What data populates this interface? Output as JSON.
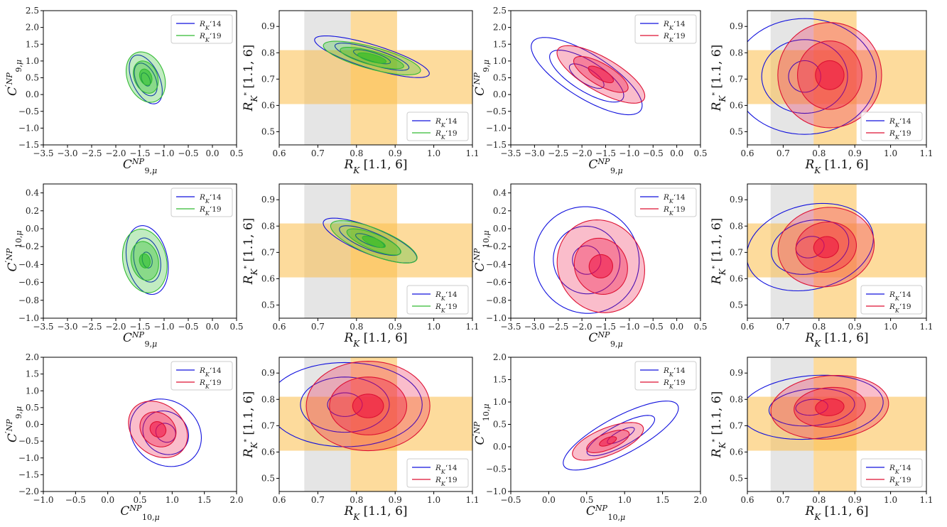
{
  "colors": {
    "blue": "#1010dd",
    "green_line": "#33bb33",
    "green_fill": "#22bb22",
    "red_line": "#dd1133",
    "red_fill": "#ee1144",
    "gray_band": "#d4d4d4",
    "orange_band": "#fbbd4a"
  },
  "legend_labels": {
    "r14": "R_K‘14",
    "r19": "R_K‘19"
  },
  "chart_data": [
    {
      "panel": "row1-col1",
      "type": "contour",
      "xlabel": "C9,μ NP",
      "ylabel": "C'9,μ NP",
      "xlim": [
        -3.5,
        0.5
      ],
      "ylim": [
        -1.5,
        2.5
      ],
      "xticks": [
        -3.5,
        -3.0,
        -2.5,
        -2.0,
        -1.5,
        -1.0,
        -0.5,
        0.0,
        0.5
      ],
      "yticks": [
        -1.5,
        -1.0,
        -0.5,
        0.0,
        0.5,
        1.0,
        1.5,
        2.0,
        2.5
      ],
      "series_colors": [
        "blue",
        "green"
      ],
      "legend": "top-right",
      "contours": [
        {
          "series": "R_K‘14",
          "filled": false,
          "cx": -1.38,
          "cy": 0.45,
          "levels": [
            [
              0.28,
              0.78,
              25
            ],
            [
              0.2,
              0.52,
              25
            ],
            [
              0.08,
              0.21,
              25
            ]
          ]
        },
        {
          "series": "R_K‘19",
          "filled": true,
          "cx": -1.38,
          "cy": 0.52,
          "levels": [
            [
              0.38,
              0.78,
              22
            ],
            [
              0.24,
              0.5,
              22
            ],
            [
              0.12,
              0.25,
              22
            ]
          ]
        }
      ]
    },
    {
      "panel": "row1-col2",
      "type": "contour",
      "xlabel": "R_K [1.1, 6]",
      "ylabel": "R_K* [1.1, 6]",
      "xlim": [
        0.6,
        1.1
      ],
      "ylim": [
        0.45,
        0.96
      ],
      "xticks": [
        0.6,
        0.7,
        0.8,
        0.9,
        1.0,
        1.1
      ],
      "yticks": [
        0.5,
        0.6,
        0.7,
        0.8,
        0.9
      ],
      "bands": {
        "x_gray": [
          0.665,
          0.785
        ],
        "x_orange": [
          0.785,
          0.905
        ],
        "x_overlap": [
          0.785,
          0.845
        ],
        "y_orange": [
          0.605,
          0.81
        ]
      },
      "series_colors": [
        "blue",
        "green"
      ],
      "legend": "bottom-right",
      "contours": [
        {
          "series": "R_K‘14",
          "filled": false,
          "cx": 0.84,
          "cy": 0.785,
          "levels": [
            [
              0.155,
              0.045,
              -17
            ],
            [
              0.1,
              0.03,
              -17
            ],
            [
              0.05,
              0.017,
              -17
            ]
          ]
        },
        {
          "series": "R_K‘19",
          "filled": true,
          "cx": 0.84,
          "cy": 0.78,
          "levels": [
            [
              0.13,
              0.042,
              -15
            ],
            [
              0.085,
              0.026,
              -15
            ],
            [
              0.038,
              0.014,
              -15
            ]
          ]
        }
      ]
    },
    {
      "panel": "row1-col3",
      "type": "contour",
      "xlabel": "C9,μ NP",
      "ylabel": "C'9,μ NP",
      "xlim": [
        -3.5,
        0.5
      ],
      "ylim": [
        -1.5,
        2.5
      ],
      "xticks": [
        -3.5,
        -3.0,
        -2.5,
        -2.0,
        -1.5,
        -1.0,
        -0.5,
        0.0,
        0.5
      ],
      "yticks": [
        -1.5,
        -1.0,
        -0.5,
        0.0,
        0.5,
        1.0,
        1.5,
        2.0,
        2.5
      ],
      "series_colors": [
        "blue",
        "red"
      ],
      "legend": "top-right",
      "contours": [
        {
          "series": "R_K‘14",
          "filled": false,
          "cx": -1.9,
          "cy": 0.55,
          "levels": [
            [
              1.35,
              0.65,
              -32
            ],
            [
              0.9,
              0.45,
              -32
            ],
            [
              0.42,
              0.22,
              -32
            ]
          ]
        },
        {
          "series": "R_K‘19",
          "filled": true,
          "cx": -1.6,
          "cy": 0.6,
          "levels": [
            [
              1.05,
              0.5,
              -30
            ],
            [
              0.65,
              0.32,
              -30
            ],
            [
              0.3,
              0.15,
              -30
            ]
          ]
        }
      ]
    },
    {
      "panel": "row1-col4",
      "type": "contour",
      "xlabel": "R_K [1.1, 6]",
      "ylabel": "R_K* [1.1, 6]",
      "xlim": [
        0.6,
        1.1
      ],
      "ylim": [
        0.45,
        0.96
      ],
      "xticks": [
        0.6,
        0.7,
        0.8,
        0.9,
        1.0,
        1.1
      ],
      "yticks": [
        0.5,
        0.6,
        0.7,
        0.8,
        0.9
      ],
      "bands": {
        "x_gray": [
          0.665,
          0.785
        ],
        "x_orange": [
          0.785,
          0.905
        ],
        "x_overlap": [
          0.785,
          0.845
        ],
        "y_orange": [
          0.605,
          0.81
        ]
      },
      "series_colors": [
        "blue",
        "red"
      ],
      "legend": "bottom-right",
      "contours": [
        {
          "series": "R_K‘14",
          "filled": false,
          "cx": 0.76,
          "cy": 0.71,
          "levels": [
            [
              0.2,
              0.22,
              0
            ],
            [
              0.12,
              0.14,
              0
            ],
            [
              0.045,
              0.06,
              0
            ]
          ]
        },
        {
          "series": "R_K‘19",
          "filled": true,
          "cx": 0.83,
          "cy": 0.715,
          "levels": [
            [
              0.145,
              0.2,
              0
            ],
            [
              0.09,
              0.13,
              0
            ],
            [
              0.04,
              0.055,
              0
            ]
          ]
        }
      ]
    },
    {
      "panel": "row2-col1",
      "type": "contour",
      "xlabel": "C9,μ NP",
      "ylabel": "C'10,μ NP",
      "xlim": [
        -3.5,
        0.5
      ],
      "ylim": [
        -1.0,
        0.5
      ],
      "xticks": [
        -3.5,
        -3.0,
        -2.5,
        -2.0,
        -1.5,
        -1.0,
        -0.5,
        0.0,
        0.5
      ],
      "yticks": [
        -1.0,
        -0.8,
        -0.6,
        -0.4,
        -0.2,
        0.0,
        0.2,
        0.4
      ],
      "series_colors": [
        "blue",
        "green"
      ],
      "legend": "top-right",
      "contours": [
        {
          "series": "R_K‘14",
          "filled": false,
          "cx": -1.35,
          "cy": -0.35,
          "levels": [
            [
              0.42,
              0.39,
              12
            ],
            [
              0.27,
              0.25,
              12
            ],
            [
              0.1,
              0.09,
              12
            ]
          ]
        },
        {
          "series": "R_K‘19",
          "filled": true,
          "cx": -1.4,
          "cy": -0.36,
          "levels": [
            [
              0.45,
              0.36,
              12
            ],
            [
              0.28,
              0.22,
              12
            ],
            [
              0.11,
              0.08,
              12
            ]
          ]
        }
      ]
    },
    {
      "panel": "row2-col2",
      "type": "contour",
      "xlabel": "R_K [1.1, 6]",
      "ylabel": "R_K* [1.1, 6]",
      "xlim": [
        0.6,
        1.1
      ],
      "ylim": [
        0.45,
        0.96
      ],
      "xticks": [
        0.6,
        0.7,
        0.8,
        0.9,
        1.0,
        1.1
      ],
      "yticks": [
        0.5,
        0.6,
        0.7,
        0.8,
        0.9
      ],
      "bands": {
        "x_gray": [
          0.665,
          0.785
        ],
        "x_orange": [
          0.785,
          0.905
        ],
        "x_overlap": [
          0.785,
          0.845
        ],
        "y_orange": [
          0.605,
          0.81
        ]
      },
      "series_colors": [
        "blue",
        "green"
      ],
      "legend": "bottom-right",
      "contours": [
        {
          "series": "R_K‘14",
          "filled": false,
          "cx": 0.835,
          "cy": 0.745,
          "levels": [
            [
              0.13,
              0.05,
              -22
            ],
            [
              0.085,
              0.034,
              -22
            ],
            [
              0.04,
              0.016,
              -22
            ]
          ]
        },
        {
          "series": "R_K‘19",
          "filled": true,
          "cx": 0.845,
          "cy": 0.74,
          "levels": [
            [
              0.12,
              0.05,
              -22
            ],
            [
              0.075,
              0.03,
              -22
            ],
            [
              0.032,
              0.014,
              -22
            ]
          ]
        }
      ]
    },
    {
      "panel": "row2-col3",
      "type": "contour",
      "xlabel": "C9,μ NP",
      "ylabel": "C'10,μ NP",
      "xlim": [
        -3.5,
        0.5
      ],
      "ylim": [
        -1.0,
        0.5
      ],
      "xticks": [
        -3.5,
        -3.0,
        -2.5,
        -2.0,
        -1.5,
        -1.0,
        -0.5,
        0.0,
        0.5
      ],
      "yticks": [
        -1.0,
        -0.8,
        -0.6,
        -0.4,
        -0.2,
        0.0,
        0.2,
        0.4
      ],
      "series_colors": [
        "blue",
        "red"
      ],
      "legend": "top-right",
      "contours": [
        {
          "series": "R_K‘14",
          "filled": false,
          "cx": -1.9,
          "cy": -0.35,
          "levels": [
            [
              1.1,
              0.6,
              28
            ],
            [
              0.7,
              0.38,
              28
            ],
            [
              0.3,
              0.16,
              28
            ]
          ]
        },
        {
          "series": "R_K‘19",
          "filled": true,
          "cx": -1.6,
          "cy": -0.42,
          "levels": [
            [
              0.9,
              0.53,
              28
            ],
            [
              0.55,
              0.32,
              28
            ],
            [
              0.25,
              0.13,
              28
            ]
          ]
        }
      ]
    },
    {
      "panel": "row2-col4",
      "type": "contour",
      "xlabel": "R_K [1.1, 6]",
      "ylabel": "R_K* [1.1, 6]",
      "xlim": [
        0.6,
        1.1
      ],
      "ylim": [
        0.45,
        0.96
      ],
      "xticks": [
        0.6,
        0.7,
        0.8,
        0.9,
        1.0,
        1.1
      ],
      "yticks": [
        0.5,
        0.6,
        0.7,
        0.8,
        0.9
      ],
      "bands": {
        "x_gray": [
          0.665,
          0.785
        ],
        "x_orange": [
          0.785,
          0.905
        ],
        "x_overlap": [
          0.785,
          0.845
        ],
        "y_orange": [
          0.605,
          0.81
        ]
      },
      "series_colors": [
        "blue",
        "red"
      ],
      "legend": "bottom-right",
      "contours": [
        {
          "series": "R_K‘14",
          "filled": false,
          "cx": 0.775,
          "cy": 0.72,
          "levels": [
            [
              0.18,
              0.16,
              14
            ],
            [
              0.11,
              0.1,
              14
            ],
            [
              0.04,
              0.04,
              14
            ]
          ]
        },
        {
          "series": "R_K‘19",
          "filled": true,
          "cx": 0.82,
          "cy": 0.72,
          "levels": [
            [
              0.135,
              0.15,
              10
            ],
            [
              0.085,
              0.095,
              10
            ],
            [
              0.035,
              0.04,
              10
            ]
          ]
        }
      ]
    },
    {
      "panel": "row3-col1",
      "type": "contour",
      "xlabel": "C10,μ NP",
      "ylabel": "C'9,μ NP",
      "xlim": [
        -1.0,
        2.0
      ],
      "ylim": [
        -2.0,
        2.0
      ],
      "xticks": [
        -1.0,
        -0.5,
        0.0,
        0.5,
        1.0,
        1.5,
        2.0
      ],
      "yticks": [
        -2.0,
        -1.5,
        -1.0,
        -0.5,
        0.0,
        0.5,
        1.0,
        1.5,
        2.0
      ],
      "series_colors": [
        "blue",
        "red"
      ],
      "legend": "top-right",
      "contours": [
        {
          "series": "R_K‘14",
          "filled": false,
          "cx": 0.9,
          "cy": -0.25,
          "levels": [
            [
              0.58,
              0.95,
              -35
            ],
            [
              0.37,
              0.62,
              -35
            ],
            [
              0.16,
              0.27,
              -35
            ]
          ]
        },
        {
          "series": "R_K‘19",
          "filled": true,
          "cx": 0.78,
          "cy": -0.15,
          "levels": [
            [
              0.5,
              0.75,
              -40
            ],
            [
              0.3,
              0.48,
              -40
            ],
            [
              0.13,
              0.22,
              -40
            ]
          ]
        }
      ]
    },
    {
      "panel": "row3-col2",
      "type": "contour",
      "xlabel": "R_K [1.1, 6]",
      "ylabel": "R_K* [1.1, 6]",
      "xlim": [
        0.6,
        1.1
      ],
      "ylim": [
        0.45,
        0.96
      ],
      "xticks": [
        0.6,
        0.7,
        0.8,
        0.9,
        1.0,
        1.1
      ],
      "yticks": [
        0.5,
        0.6,
        0.7,
        0.8,
        0.9
      ],
      "bands": {
        "x_gray": [
          0.665,
          0.785
        ],
        "x_orange": [
          0.785,
          0.905
        ],
        "x_overlap": [
          0.785,
          0.845
        ],
        "y_orange": [
          0.605,
          0.81
        ]
      },
      "series_colors": [
        "blue",
        "red"
      ],
      "legend": "bottom-right",
      "contours": [
        {
          "series": "R_K‘14",
          "filled": false,
          "cx": 0.77,
          "cy": 0.78,
          "levels": [
            [
              0.2,
              0.16,
              0
            ],
            [
              0.115,
              0.105,
              0
            ],
            [
              0.045,
              0.045,
              0
            ]
          ]
        },
        {
          "series": "R_K‘19",
          "filled": true,
          "cx": 0.83,
          "cy": 0.775,
          "levels": [
            [
              0.16,
              0.17,
              0
            ],
            [
              0.1,
              0.11,
              0
            ],
            [
              0.04,
              0.045,
              0
            ]
          ]
        }
      ]
    },
    {
      "panel": "row3-col3",
      "type": "contour",
      "xlabel": "C10,μ NP",
      "ylabel": "C'10,μ NP",
      "xlim": [
        -0.5,
        2.0
      ],
      "ylim": [
        -1.0,
        2.0
      ],
      "xticks": [
        -0.5,
        0.0,
        0.5,
        1.0,
        1.5,
        2.0
      ],
      "yticks": [
        -1.0,
        -0.5,
        0.0,
        0.5,
        1.0,
        1.5,
        2.0
      ],
      "series_colors": [
        "blue",
        "red"
      ],
      "legend": "top-right",
      "contours": [
        {
          "series": "R_K‘14",
          "filled": false,
          "cx": 0.95,
          "cy": 0.25,
          "levels": [
            [
              0.85,
              0.42,
              28
            ],
            [
              0.5,
              0.24,
              28
            ],
            [
              0.2,
              0.1,
              28
            ]
          ]
        },
        {
          "series": "R_K‘19",
          "filled": true,
          "cx": 0.78,
          "cy": 0.12,
          "levels": [
            [
              0.5,
              0.3,
              22
            ],
            [
              0.3,
              0.18,
              22
            ],
            [
              0.12,
              0.08,
              22
            ]
          ]
        }
      ]
    },
    {
      "panel": "row3-col4",
      "type": "contour",
      "xlabel": "R_K [1.1, 6]",
      "ylabel": "R_K* [1.1, 6]",
      "xlim": [
        0.6,
        1.1
      ],
      "ylim": [
        0.45,
        0.96
      ],
      "xticks": [
        0.6,
        0.7,
        0.8,
        0.9,
        1.0,
        1.1
      ],
      "yticks": [
        0.5,
        0.6,
        0.7,
        0.8,
        0.9
      ],
      "bands": {
        "x_gray": [
          0.665,
          0.785
        ],
        "x_orange": [
          0.785,
          0.905
        ],
        "x_overlap": [
          0.785,
          0.845
        ],
        "y_orange": [
          0.605,
          0.81
        ]
      },
      "series_colors": [
        "blue",
        "red"
      ],
      "legend": "bottom-right",
      "contours": [
        {
          "series": "R_K‘14",
          "filled": false,
          "cx": 0.78,
          "cy": 0.77,
          "levels": [
            [
              0.2,
              0.12,
              5
            ],
            [
              0.12,
              0.07,
              5
            ],
            [
              0.045,
              0.03,
              5
            ]
          ]
        },
        {
          "series": "R_K‘19",
          "filled": true,
          "cx": 0.83,
          "cy": 0.77,
          "levels": [
            [
              0.165,
              0.12,
              5
            ],
            [
              0.1,
              0.075,
              5
            ],
            [
              0.04,
              0.032,
              5
            ]
          ]
        }
      ]
    }
  ]
}
